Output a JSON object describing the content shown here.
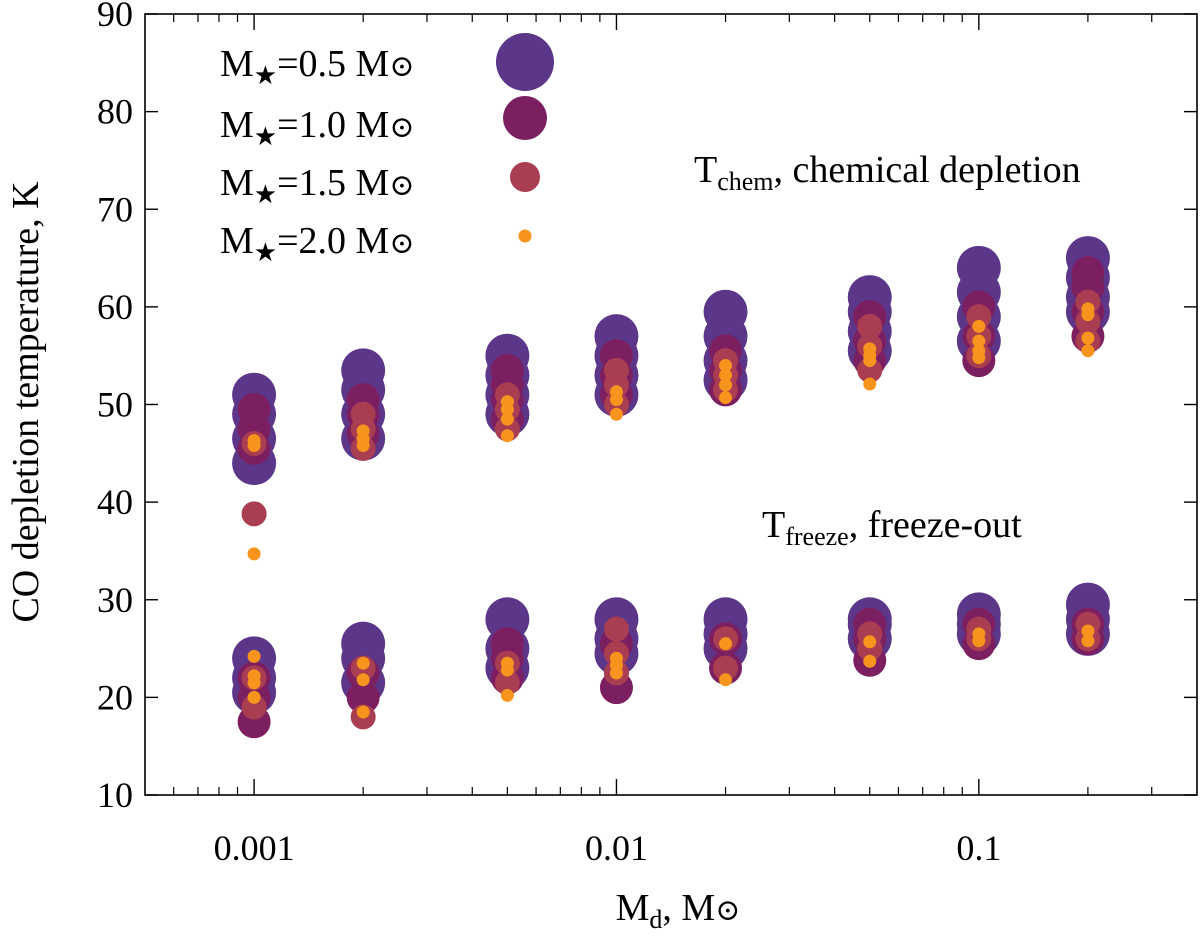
{
  "chart_data": {
    "type": "scatter",
    "xscale": "log",
    "xlim": [
      0.0005,
      0.4
    ],
    "ylim": [
      10,
      90
    ],
    "yticks": [
      10,
      20,
      30,
      40,
      50,
      60,
      70,
      80,
      90
    ],
    "xticks": [
      0.001,
      0.01,
      0.1
    ],
    "xtick_labels": [
      "0.001",
      "0.01",
      "0.1"
    ],
    "ylabel": "CO depletion temperature, K",
    "xlabel": {
      "main": "M",
      "sub": "d",
      "rest": ", M",
      "sym": "⊙"
    },
    "annotations": [
      {
        "id": "chem",
        "main": "T",
        "sub": "chem",
        "rest": ", chemical depletion"
      },
      {
        "id": "freeze",
        "main": "T",
        "sub": "freeze",
        "rest": ", freeze-out"
      }
    ],
    "legend_position": "top-left",
    "series": [
      {
        "name": "M★=0.5 M⊙",
        "label": {
          "main": "M",
          "sub": "★",
          "rest": "=0.5 M",
          "sym": "⊙"
        },
        "color": "#5c3789",
        "points": [
          [
            0.001,
            44
          ],
          [
            0.001,
            46.5
          ],
          [
            0.001,
            49
          ],
          [
            0.001,
            51
          ],
          [
            0.001,
            20.5
          ],
          [
            0.001,
            22
          ],
          [
            0.001,
            24
          ],
          [
            0.002,
            46.5
          ],
          [
            0.002,
            49
          ],
          [
            0.002,
            51.5
          ],
          [
            0.002,
            53.5
          ],
          [
            0.002,
            21.5
          ],
          [
            0.002,
            24
          ],
          [
            0.002,
            25.5
          ],
          [
            0.005,
            49
          ],
          [
            0.005,
            51
          ],
          [
            0.005,
            53
          ],
          [
            0.005,
            55
          ],
          [
            0.005,
            23
          ],
          [
            0.005,
            25
          ],
          [
            0.005,
            28
          ],
          [
            0.01,
            51
          ],
          [
            0.01,
            53
          ],
          [
            0.01,
            55
          ],
          [
            0.01,
            57
          ],
          [
            0.01,
            24.5
          ],
          [
            0.01,
            26
          ],
          [
            0.01,
            28
          ],
          [
            0.02,
            52.5
          ],
          [
            0.02,
            54.5
          ],
          [
            0.02,
            57
          ],
          [
            0.02,
            59.5
          ],
          [
            0.02,
            25
          ],
          [
            0.02,
            26.5
          ],
          [
            0.02,
            28
          ],
          [
            0.05,
            55.5
          ],
          [
            0.05,
            57.5
          ],
          [
            0.05,
            59.5
          ],
          [
            0.05,
            61
          ],
          [
            0.05,
            26
          ],
          [
            0.05,
            27.5
          ],
          [
            0.05,
            28
          ],
          [
            0.1,
            56.5
          ],
          [
            0.1,
            59
          ],
          [
            0.1,
            61.5
          ],
          [
            0.1,
            64
          ],
          [
            0.1,
            26.5
          ],
          [
            0.1,
            27.5
          ],
          [
            0.1,
            28.5
          ],
          [
            0.2,
            59.5
          ],
          [
            0.2,
            61
          ],
          [
            0.2,
            63
          ],
          [
            0.2,
            65
          ],
          [
            0.2,
            26.5
          ],
          [
            0.2,
            28
          ],
          [
            0.2,
            29.5
          ]
        ]
      },
      {
        "name": "M★=1.0 M⊙",
        "label": {
          "main": "M",
          "sub": "★",
          "rest": "=1.0 M",
          "sym": "⊙"
        },
        "color": "#7c1f61",
        "points": [
          [
            0.001,
            45.5
          ],
          [
            0.001,
            47.5
          ],
          [
            0.001,
            49.5
          ],
          [
            0.001,
            17.5
          ],
          [
            0.001,
            20
          ],
          [
            0.001,
            22
          ],
          [
            0.002,
            47
          ],
          [
            0.002,
            49
          ],
          [
            0.002,
            50.5
          ],
          [
            0.002,
            20
          ],
          [
            0.002,
            22.5
          ],
          [
            0.005,
            48.5
          ],
          [
            0.005,
            50.5
          ],
          [
            0.005,
            52
          ],
          [
            0.005,
            53.5
          ],
          [
            0.005,
            22
          ],
          [
            0.005,
            24
          ],
          [
            0.005,
            25.5
          ],
          [
            0.01,
            51
          ],
          [
            0.01,
            53
          ],
          [
            0.01,
            55
          ],
          [
            0.01,
            21
          ],
          [
            0.01,
            25.5
          ],
          [
            0.02,
            51.5
          ],
          [
            0.02,
            53.5
          ],
          [
            0.02,
            55.5
          ],
          [
            0.02,
            23
          ],
          [
            0.02,
            26
          ],
          [
            0.05,
            54.5
          ],
          [
            0.05,
            56.5
          ],
          [
            0.05,
            59
          ],
          [
            0.05,
            23.8
          ],
          [
            0.05,
            26
          ],
          [
            0.05,
            27.5
          ],
          [
            0.1,
            54.5
          ],
          [
            0.1,
            57
          ],
          [
            0.1,
            60
          ],
          [
            0.1,
            25.5
          ],
          [
            0.1,
            27.5
          ],
          [
            0.2,
            57
          ],
          [
            0.2,
            59.5
          ],
          [
            0.2,
            62
          ],
          [
            0.2,
            63.5
          ],
          [
            0.2,
            26
          ],
          [
            0.2,
            27.5
          ]
        ]
      },
      {
        "name": "M★=1.5 M⊙",
        "label": {
          "main": "M",
          "sub": "★",
          "rest": "=1.5 M",
          "sym": "⊙"
        },
        "color": "#a93d52",
        "points": [
          [
            0.001,
            38.8
          ],
          [
            0.001,
            46
          ],
          [
            0.001,
            19
          ],
          [
            0.001,
            22
          ],
          [
            0.002,
            45.5
          ],
          [
            0.002,
            47.5
          ],
          [
            0.002,
            49
          ],
          [
            0.002,
            18
          ],
          [
            0.002,
            23
          ],
          [
            0.005,
            47.5
          ],
          [
            0.005,
            49.5
          ],
          [
            0.005,
            51
          ],
          [
            0.005,
            21.5
          ],
          [
            0.005,
            23.5
          ],
          [
            0.01,
            50
          ],
          [
            0.01,
            52
          ],
          [
            0.01,
            53.5
          ],
          [
            0.01,
            22.5
          ],
          [
            0.01,
            24.5
          ],
          [
            0.01,
            27
          ],
          [
            0.02,
            51.5
          ],
          [
            0.02,
            53
          ],
          [
            0.02,
            54.5
          ],
          [
            0.02,
            23
          ],
          [
            0.02,
            26
          ],
          [
            0.05,
            53.5
          ],
          [
            0.05,
            56
          ],
          [
            0.05,
            58
          ],
          [
            0.05,
            25
          ],
          [
            0.05,
            26.5
          ],
          [
            0.1,
            55
          ],
          [
            0.1,
            57
          ],
          [
            0.1,
            59
          ],
          [
            0.1,
            26
          ],
          [
            0.1,
            27
          ],
          [
            0.2,
            56.5
          ],
          [
            0.2,
            58.5
          ],
          [
            0.2,
            60.5
          ],
          [
            0.2,
            26
          ],
          [
            0.2,
            27.5
          ]
        ]
      },
      {
        "name": "M★=2.0 M⊙",
        "label": {
          "main": "M",
          "sub": "★",
          "rest": "=2.0 M",
          "sym": "⊙"
        },
        "color": "#f7941d",
        "points": [
          [
            0.001,
            34.7
          ],
          [
            0.001,
            45.8
          ],
          [
            0.001,
            46.3
          ],
          [
            0.001,
            20
          ],
          [
            0.001,
            21.5
          ],
          [
            0.001,
            22.2
          ],
          [
            0.001,
            24.2
          ],
          [
            0.002,
            45.8
          ],
          [
            0.002,
            46.5
          ],
          [
            0.002,
            47.3
          ],
          [
            0.002,
            18.5
          ],
          [
            0.002,
            21.8
          ],
          [
            0.002,
            23.5
          ],
          [
            0.005,
            46.8
          ],
          [
            0.005,
            48.5
          ],
          [
            0.005,
            49.5
          ],
          [
            0.005,
            50.3
          ],
          [
            0.005,
            20.2
          ],
          [
            0.005,
            22.8
          ],
          [
            0.005,
            23.5
          ],
          [
            0.01,
            49
          ],
          [
            0.01,
            50.5
          ],
          [
            0.01,
            51.3
          ],
          [
            0.01,
            22.5
          ],
          [
            0.01,
            23.3
          ],
          [
            0.01,
            24
          ],
          [
            0.02,
            50.7
          ],
          [
            0.02,
            52
          ],
          [
            0.02,
            53
          ],
          [
            0.02,
            54
          ],
          [
            0.02,
            21.8
          ],
          [
            0.02,
            25.5
          ],
          [
            0.05,
            52.1
          ],
          [
            0.05,
            54.5
          ],
          [
            0.05,
            55
          ],
          [
            0.05,
            55.7
          ],
          [
            0.05,
            23.7
          ],
          [
            0.05,
            25.7
          ],
          [
            0.1,
            54.8
          ],
          [
            0.1,
            55.5
          ],
          [
            0.1,
            56.5
          ],
          [
            0.1,
            58
          ],
          [
            0.1,
            25.8
          ],
          [
            0.1,
            26.5
          ],
          [
            0.2,
            55.5
          ],
          [
            0.2,
            56.8
          ],
          [
            0.2,
            59.2
          ],
          [
            0.2,
            59.8
          ],
          [
            0.2,
            25.8
          ],
          [
            0.2,
            26.8
          ]
        ]
      }
    ]
  }
}
